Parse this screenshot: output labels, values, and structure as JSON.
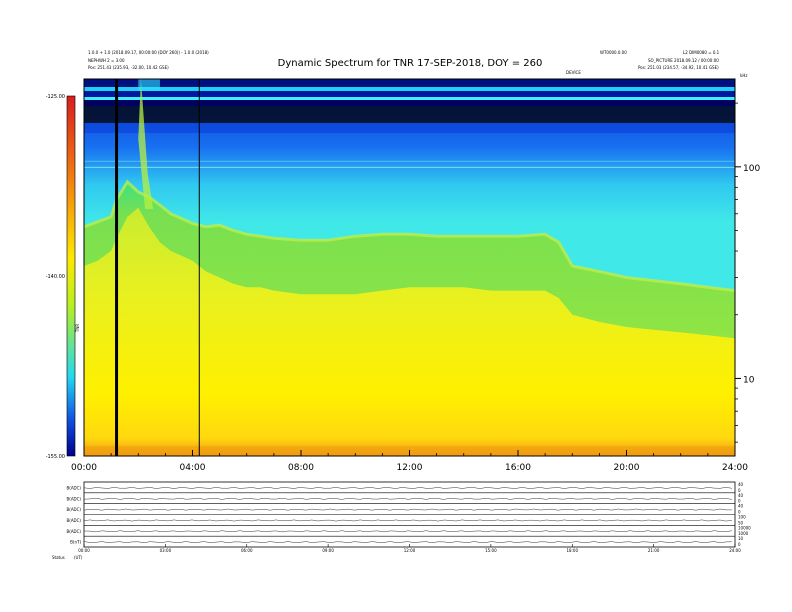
{
  "header": {
    "title": "Dynamic Spectrum for TNR 17-SEP-2018, DOY = 260",
    "left_line1": "1.0.0 + 1.0 (2018.09.17, 00:00:00 (DOY 260)) - 1.0.0 (2018)",
    "left_line2": "NEPHWH 2 = 3.00",
    "left_line3": "Pos:  251.43 (235.93, -32.00, 10.42 GSE)",
    "right_code": "WT0000.0.00",
    "right_line1": "L2 DIM0080 = 0.1",
    "right_line2": "SO_PICTURE 2018.09.12 / 00:00:00",
    "right_line3": "Pos:  251.03 (234.57, -34.92, 10.41 GSE)",
    "right_small": "kHz",
    "mid_small": "DEVICE"
  },
  "colorbar": {
    "tick_labels": [
      "-125.00",
      "-140.00",
      "-155.00"
    ],
    "label": "TNR",
    "colors": [
      "#d81e1e",
      "#f07a10",
      "#ffe800",
      "#b8f020",
      "#22d8f0",
      "#1050e0",
      "#00008a"
    ]
  },
  "footer": {
    "left_label": "Status",
    "left_value": "(UT)",
    "panel_labels": [
      "B(ADC)",
      "B(ADC)",
      "B(ADC)",
      "B(ADC)",
      "B(ADC)",
      "B(nT)"
    ],
    "panel_right_ticks": [
      [
        "40",
        "0"
      ],
      [
        "40",
        "0"
      ],
      [
        "40",
        "0"
      ],
      [
        "100",
        "50"
      ],
      [
        "10000",
        "1000"
      ],
      [
        "10",
        "0"
      ]
    ],
    "panel_time_labels": [
      "00:00",
      "03:00",
      "06:00",
      "09:00",
      "12:00",
      "15:00",
      "18:00",
      "21:00",
      "24:00"
    ]
  },
  "chart_data": {
    "type": "heatmap",
    "title": "Dynamic Spectrum for TNR 17-SEP-2018, DOY = 260",
    "xlabel": "",
    "ylabel": "",
    "x_tick_labels": [
      "00:00",
      "04:00",
      "08:00",
      "12:00",
      "16:00",
      "20:00",
      "24:00"
    ],
    "x_range_hours": [
      0,
      24
    ],
    "y_scale": "log",
    "y_tick_labels": [
      "100",
      "10"
    ],
    "y_range": [
      4.3,
      260
    ],
    "colorbar_range": [
      -155,
      -125
    ],
    "colorbar_ticks": [
      -125,
      -140,
      -155
    ],
    "vertical_marker_times": [
      "01:12",
      "04:15"
    ],
    "boundary_profile": {
      "hours": [
        0,
        0.5,
        1.0,
        1.2,
        1.6,
        2.0,
        2.4,
        2.8,
        3.2,
        3.6,
        4.0,
        4.5,
        5.0,
        5.5,
        6.0,
        6.5,
        7.0,
        8.0,
        9.0,
        10.0,
        11.0,
        12.0,
        13.0,
        14.0,
        15.0,
        16.0,
        17.0,
        17.5,
        18.0,
        19.0,
        20.0,
        21.0,
        22.0,
        23.0,
        24.0
      ],
      "cyan_green_khz": [
        52,
        55,
        58,
        70,
        85,
        76,
        72,
        66,
        60,
        57,
        54,
        52,
        53,
        50,
        48,
        47,
        46,
        45,
        45,
        47,
        48,
        48,
        47,
        47,
        47,
        47,
        48,
        44,
        34,
        32,
        30,
        29,
        28,
        27,
        26
      ],
      "green_yellow_khz": [
        34,
        36,
        40,
        46,
        58,
        64,
        52,
        44,
        40,
        38,
        36,
        32,
        30,
        28,
        27,
        27,
        26,
        25,
        25,
        25,
        26,
        27,
        27,
        27,
        26,
        26,
        26,
        24,
        20,
        18.5,
        17.5,
        17,
        16.5,
        16,
        15.5
      ]
    }
  }
}
